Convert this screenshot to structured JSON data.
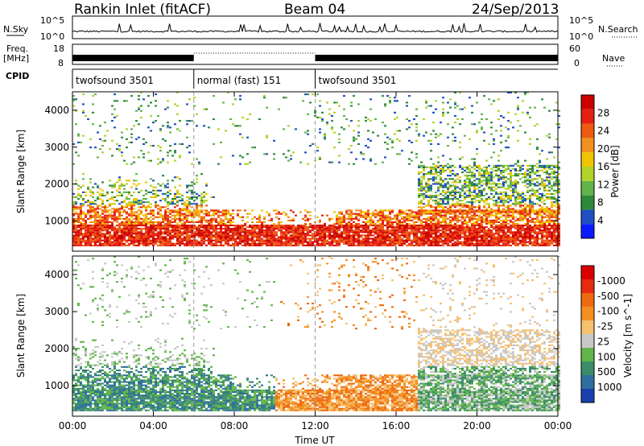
{
  "header": {
    "station": "Rankin Inlet (fitACF)",
    "beam": "Beam 04",
    "date": "24/Sep/2013"
  },
  "noise_panel": {
    "left_label": "N.Sky",
    "left_ticks": [
      "10^5",
      "10^0"
    ],
    "right_label": "N.Search",
    "right_ticks": [
      "10^5",
      "10^0"
    ]
  },
  "freq_panel": {
    "left_label_1": "Freq.",
    "left_label_2": "[MHz]",
    "left_ticks": [
      "18",
      "8"
    ],
    "right_label": "Nave",
    "right_ticks": [
      "60",
      "0"
    ]
  },
  "cpid": {
    "label": "CPID",
    "segments": [
      {
        "start_hr": 0,
        "end_hr": 6,
        "text": "twofsound 3501"
      },
      {
        "start_hr": 6,
        "end_hr": 12,
        "text": "normal (fast) 151"
      },
      {
        "start_hr": 12,
        "end_hr": 24,
        "text": "twofsound 3501"
      }
    ]
  },
  "chart_data": [
    {
      "type": "heatmap",
      "title": "",
      "ylabel": "Slant Range [km]",
      "ylim": [
        180,
        4500
      ],
      "yticks": [
        1000,
        2000,
        3000,
        4000
      ],
      "xlim": [
        0,
        24
      ],
      "colorbar": {
        "label": "Power [dB]",
        "ticks": [
          "4",
          "8",
          "12",
          "16",
          "20",
          "24",
          "28"
        ],
        "colors": [
          "#0a1aff",
          "#1f4fc2",
          "#2e8a3a",
          "#63b34a",
          "#b0d32a",
          "#f0c400",
          "#f29020",
          "#ee5a10",
          "#e52010",
          "#cc0000"
        ]
      },
      "description_bands": [
        {
          "from_hr": 0,
          "to_hr": 24,
          "range_km": [
            300,
            900
          ],
          "level": "strong"
        },
        {
          "from_hr": 0,
          "to_hr": 6,
          "range_km": [
            900,
            2200
          ],
          "level": "moderate"
        },
        {
          "from_hr": 18,
          "to_hr": 24,
          "range_km": [
            1000,
            2400
          ],
          "level": "moderate"
        }
      ]
    },
    {
      "type": "heatmap",
      "title": "",
      "ylabel": "Slant Range [km]",
      "ylim": [
        180,
        4500
      ],
      "yticks": [
        1000,
        2000,
        3000,
        4000
      ],
      "xlim": [
        0,
        24
      ],
      "xlabel": "Time UT",
      "xticks": [
        "00:00",
        "04:00",
        "08:00",
        "12:00",
        "16:00",
        "20:00",
        "00:00"
      ],
      "colorbar": {
        "label": "Velocity [m s^-1]",
        "ticks": [
          "1000",
          "500",
          "100",
          "25",
          "-25",
          "-100",
          "-500",
          "-1000"
        ],
        "colors": [
          "#1a3fae",
          "#2f6f9f",
          "#3a8d68",
          "#62b54a",
          "#c8c8c8",
          "#f5c070",
          "#f39020",
          "#ee6a10",
          "#e52a10",
          "#dd0000"
        ]
      }
    }
  ],
  "colors": {
    "grid_dash": "#999999",
    "line": "#000000"
  }
}
